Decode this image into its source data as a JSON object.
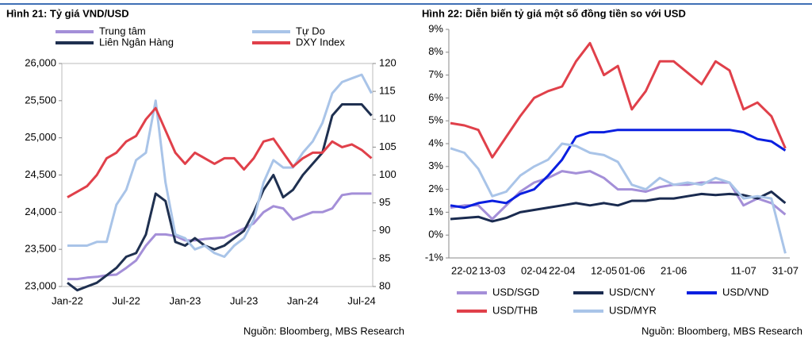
{
  "chart_data": [
    {
      "type": "line",
      "title": "Hình 21: Tỷ giá VND/USD",
      "source": "Nguồn: Bloomberg, MBS Research",
      "categories": [
        "Jan-22",
        null,
        null,
        null,
        null,
        null,
        "Jul-22",
        null,
        null,
        null,
        null,
        null,
        "Jan-23",
        null,
        null,
        null,
        null,
        null,
        "Jul-23",
        null,
        null,
        null,
        null,
        null,
        "Jan-24",
        null,
        null,
        null,
        null,
        null,
        "Jul-24",
        null
      ],
      "ylim": [
        23000,
        26000
      ],
      "yticks": [
        {
          "value": 23000,
          "label": "23,000"
        },
        {
          "value": 23500,
          "label": "23,500"
        },
        {
          "value": 24000,
          "label": "24,000"
        },
        {
          "value": 24500,
          "label": "24,500"
        },
        {
          "value": 25000,
          "label": "25,000"
        },
        {
          "value": 25500,
          "label": "25,500"
        },
        {
          "value": 26000,
          "label": "26,000"
        }
      ],
      "y2lim": [
        80,
        120
      ],
      "y2ticks": [
        80,
        85,
        90,
        95,
        100,
        105,
        110,
        115,
        120
      ],
      "series": [
        {
          "name": "Trung tâm",
          "color": "#a48fd8",
          "values": [
            23100,
            23100,
            23120,
            23130,
            23150,
            23160,
            23250,
            23350,
            23550,
            23700,
            23700,
            23680,
            23620,
            23620,
            23640,
            23650,
            23660,
            23720,
            23780,
            23850,
            24000,
            24080,
            24050,
            23900,
            23950,
            24000,
            24000,
            24050,
            24230,
            24250,
            24250,
            24250
          ]
        },
        {
          "name": "Liên Ngân Hàng",
          "color": "#1f3050",
          "values": [
            23050,
            22950,
            23000,
            23050,
            23150,
            23250,
            23400,
            23450,
            23700,
            24250,
            24150,
            23600,
            23550,
            23650,
            23550,
            23500,
            23550,
            23650,
            23750,
            24000,
            24300,
            24500,
            24200,
            24300,
            24500,
            24650,
            24800,
            25300,
            25450,
            25450,
            25450,
            25300
          ]
        },
        {
          "name": "Tự Do",
          "color": "#a9c4e8",
          "values": [
            23550,
            23550,
            23550,
            23600,
            23600,
            24100,
            24300,
            24700,
            24800,
            25500,
            24400,
            23700,
            23650,
            23500,
            23550,
            23450,
            23400,
            23550,
            23650,
            23900,
            24400,
            24700,
            24600,
            24600,
            24800,
            24950,
            25200,
            25600,
            25750,
            25800,
            25850,
            25600
          ]
        },
        {
          "name": "DXY Index",
          "color": "#e0404a",
          "axis": "y2",
          "values": [
            96,
            97,
            98,
            100,
            103,
            104,
            106,
            107,
            110,
            112,
            108,
            104,
            102,
            104,
            103,
            102,
            103,
            103,
            101,
            103,
            106,
            106.5,
            104,
            101.5,
            103,
            104,
            104,
            106,
            105,
            105.5,
            104.5,
            103
          ]
        }
      ]
    },
    {
      "type": "line",
      "title": "Hình 22: Diễn biến tỷ giá một số đồng tiền so với USD",
      "source": "Nguồn: Bloomberg, MBS Research",
      "categories": [
        null,
        "22-02",
        null,
        "13-03",
        null,
        null,
        "02-04",
        null,
        "22-04",
        null,
        null,
        "12-05",
        null,
        "01-06",
        null,
        null,
        "21-06",
        null,
        null,
        null,
        null,
        "11-07",
        null,
        null,
        "31-07"
      ],
      "ylim": [
        -1,
        9
      ],
      "yticks": [
        {
          "value": -1,
          "label": "-1%"
        },
        {
          "value": 0,
          "label": "0%"
        },
        {
          "value": 1,
          "label": "1%"
        },
        {
          "value": 2,
          "label": "2%"
        },
        {
          "value": 3,
          "label": "3%"
        },
        {
          "value": 4,
          "label": "4%"
        },
        {
          "value": 5,
          "label": "5%"
        },
        {
          "value": 6,
          "label": "6%"
        },
        {
          "value": 7,
          "label": "7%"
        },
        {
          "value": 8,
          "label": "8%"
        },
        {
          "value": 9,
          "label": "9%"
        }
      ],
      "series": [
        {
          "name": "USD/SGD",
          "color": "#a48fd8",
          "values": [
            1.2,
            1.3,
            1.3,
            0.7,
            1.3,
            1.9,
            2.3,
            2.5,
            2.8,
            2.7,
            2.8,
            2.5,
            2.0,
            2.0,
            1.9,
            2.1,
            2.2,
            2.2,
            2.3,
            2.3,
            2.3,
            1.3,
            1.6,
            1.4,
            0.9
          ]
        },
        {
          "name": "USD/CNY",
          "color": "#1a2b50",
          "values": [
            0.7,
            0.75,
            0.8,
            0.6,
            0.75,
            1.0,
            1.1,
            1.2,
            1.3,
            1.4,
            1.3,
            1.4,
            1.3,
            1.5,
            1.5,
            1.6,
            1.6,
            1.7,
            1.8,
            1.75,
            1.8,
            1.75,
            1.6,
            1.9,
            1.4
          ]
        },
        {
          "name": "USD/VND",
          "color": "#0a1fe0",
          "values": [
            1.3,
            1.2,
            1.4,
            1.5,
            1.4,
            1.8,
            2.0,
            2.6,
            3.3,
            4.3,
            4.5,
            4.5,
            4.6,
            4.6,
            4.6,
            4.6,
            4.6,
            4.6,
            4.6,
            4.6,
            4.6,
            4.5,
            4.2,
            4.1,
            3.7
          ]
        },
        {
          "name": "USD/THB",
          "color": "#e0404a",
          "values": [
            4.9,
            4.8,
            4.6,
            3.4,
            4.3,
            5.2,
            6.0,
            6.3,
            6.5,
            7.6,
            8.4,
            7.0,
            7.4,
            5.5,
            6.3,
            7.6,
            7.6,
            7.1,
            6.6,
            7.6,
            7.2,
            5.5,
            5.8,
            5.2,
            3.8
          ]
        },
        {
          "name": "USD/MYR",
          "color": "#a9c4e8",
          "values": [
            3.8,
            3.6,
            2.9,
            1.7,
            1.9,
            2.6,
            3.0,
            3.3,
            4.0,
            3.9,
            3.6,
            3.5,
            3.2,
            2.2,
            2.0,
            2.5,
            2.2,
            2.3,
            2.2,
            2.5,
            2.3,
            1.6,
            1.7,
            1.6,
            -0.8
          ]
        }
      ]
    }
  ]
}
